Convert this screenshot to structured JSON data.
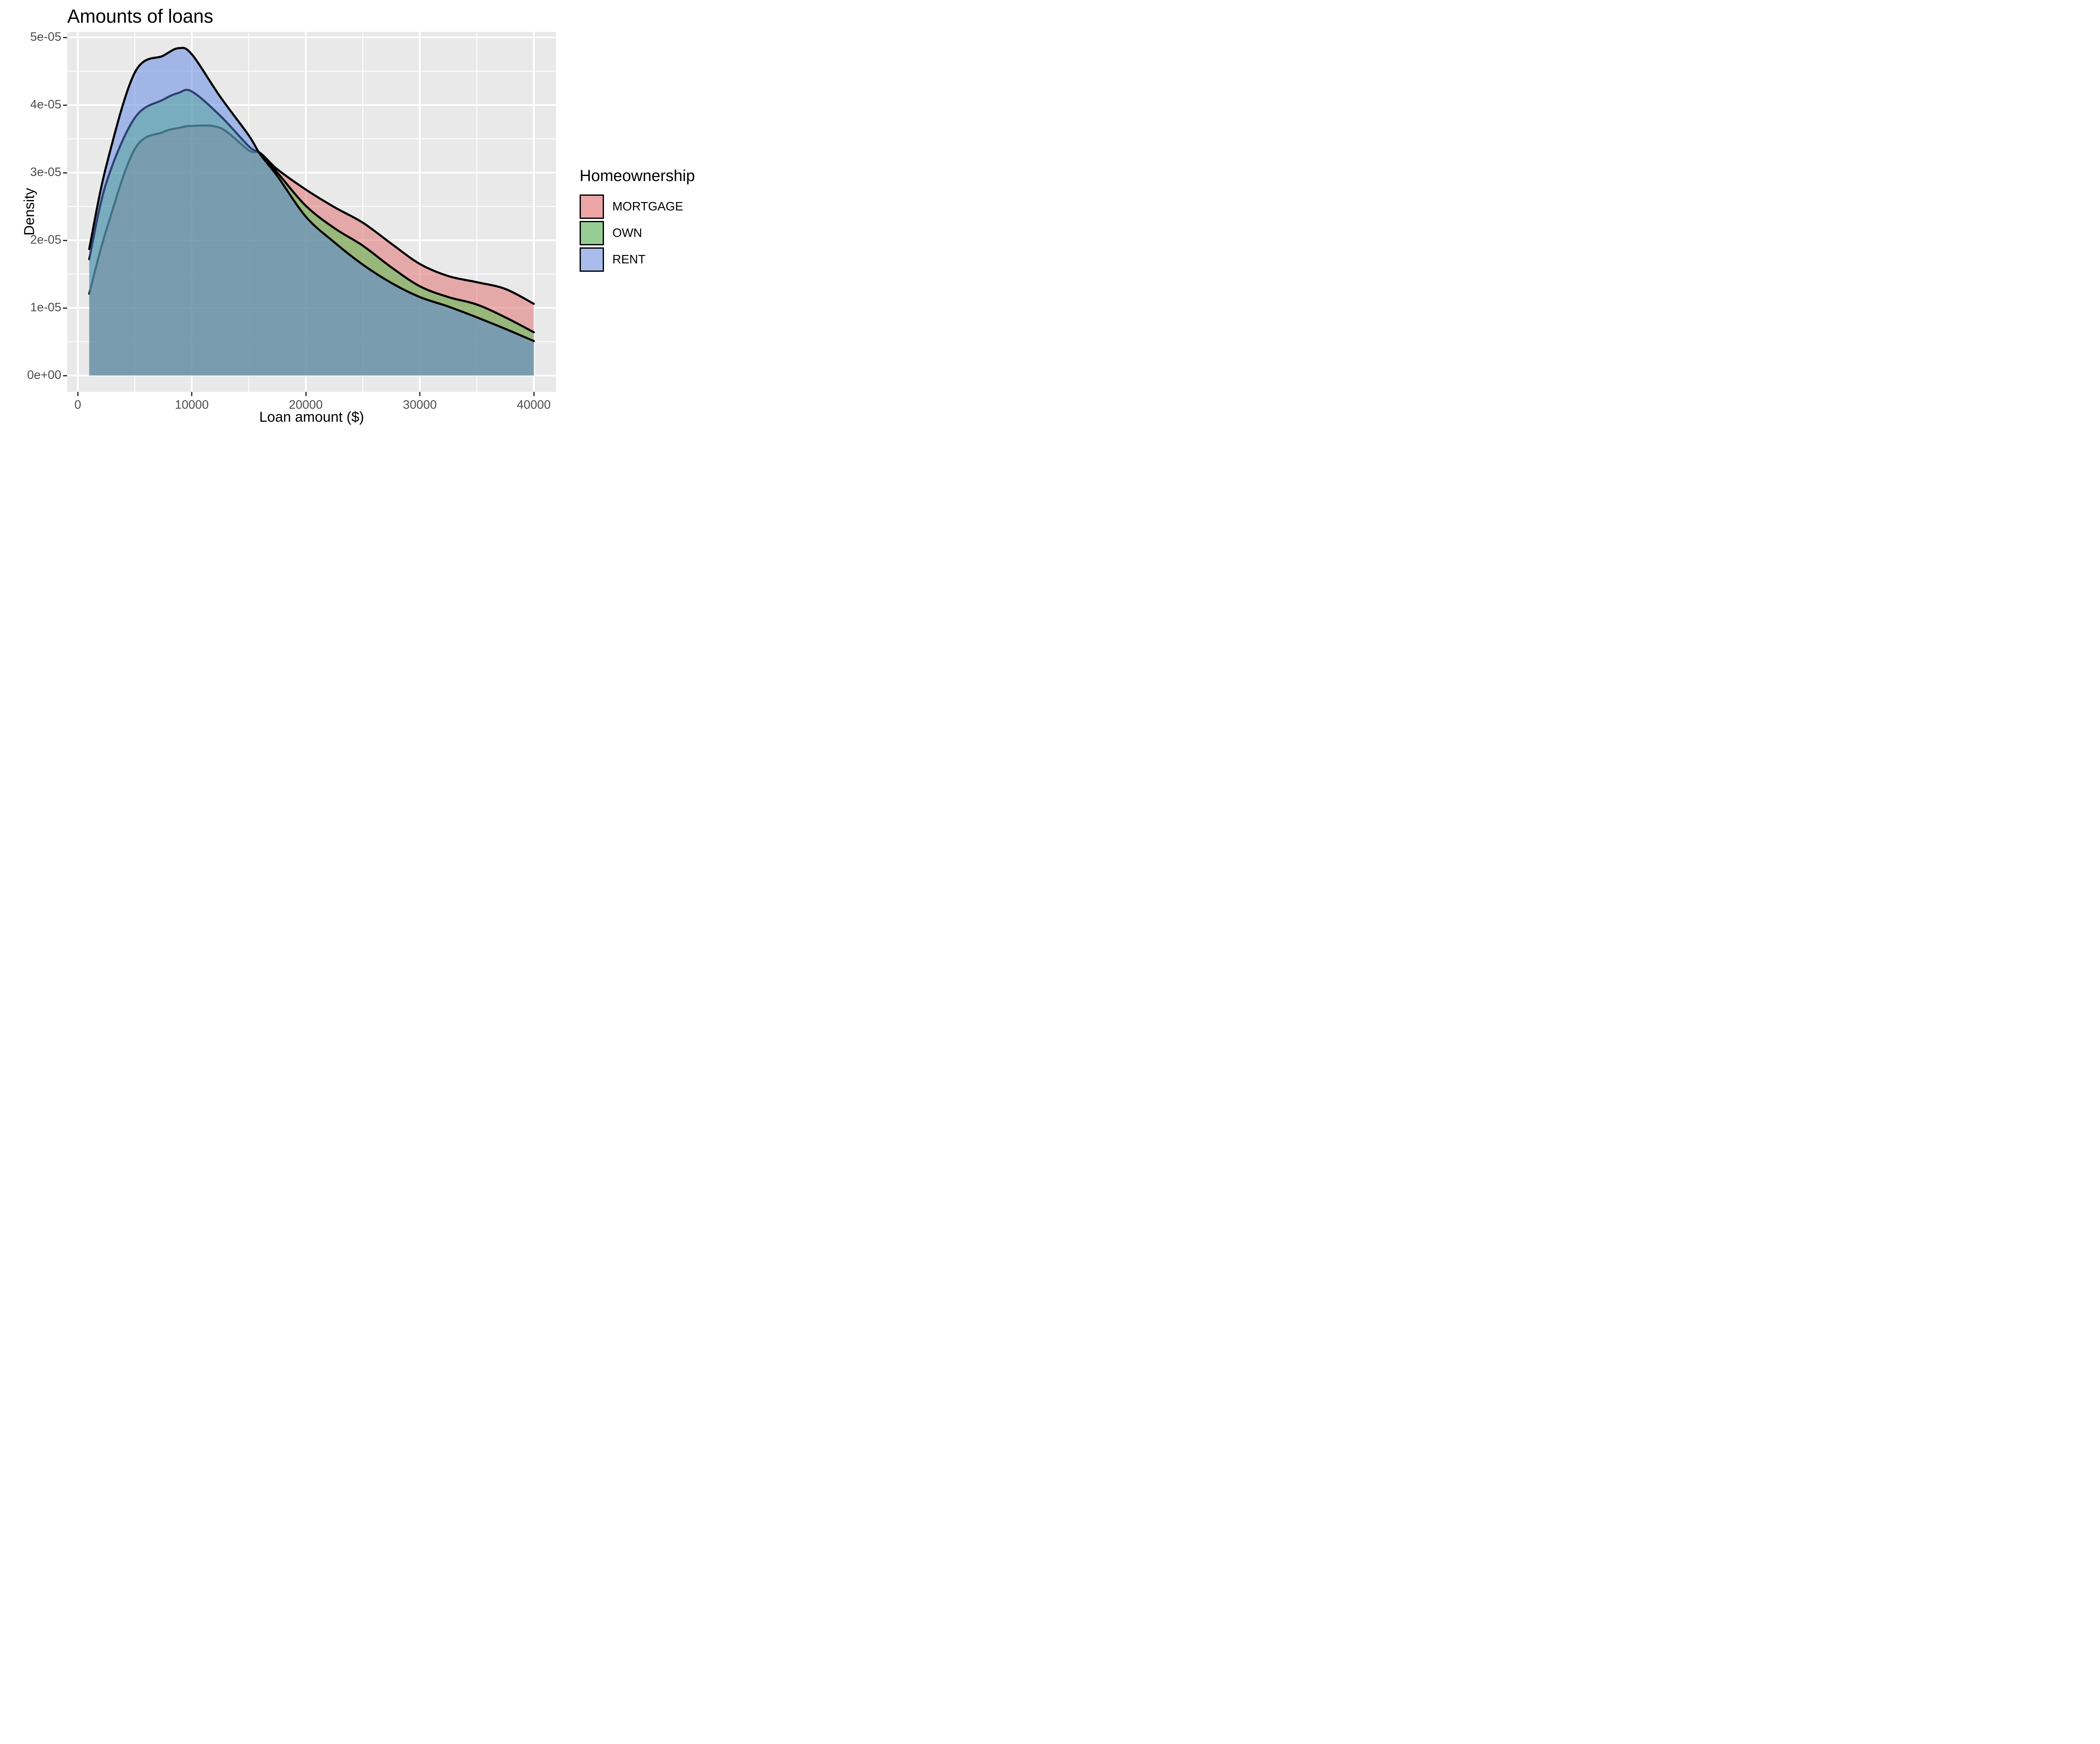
{
  "title": "Amounts of loans",
  "axes": {
    "x": {
      "label": "Loan amount ($)",
      "tick_labels": [
        "0",
        "10000",
        "20000",
        "30000",
        "40000"
      ],
      "tick_values": [
        0,
        10000,
        20000,
        30000,
        40000
      ],
      "minor_tick_values": [
        5000,
        15000,
        25000,
        35000
      ]
    },
    "y": {
      "label": "Density",
      "tick_labels": [
        "0e+00",
        "1e-05",
        "2e-05",
        "3e-05",
        "4e-05",
        "5e-05"
      ],
      "tick_values": [
        0,
        1e-05,
        2e-05,
        3e-05,
        4e-05,
        5e-05
      ],
      "minor_tick_values": [
        5e-06,
        1.5e-05,
        2.5e-05,
        3.5e-05,
        4.5e-05
      ]
    }
  },
  "legend": {
    "title": "Homeownership",
    "items": [
      {
        "label": "MORTGAGE",
        "swatch": "#EDA6A6"
      },
      {
        "label": "OWN",
        "swatch": "#97CD94"
      },
      {
        "label": "RENT",
        "swatch": "#A9BCEC"
      }
    ]
  },
  "colors": {
    "panel_background": "#E9E9E9",
    "gridline": "#FFFFFF",
    "curve_outline": "#000000",
    "tick_text": "#4D4D4D",
    "mortgage_fill_base": "rgba(226,104,104,0.5)",
    "own_fill_base": "rgba(75,197,75,0.5)",
    "rent_fill_base": "rgba(90,130,227,0.5)"
  },
  "chart_data": {
    "type": "area",
    "title": "Amounts of loans",
    "xlabel": "Loan amount ($)",
    "ylabel": "Density",
    "legend_position": "right",
    "grid": true,
    "xlim": [
      0,
      40000
    ],
    "ylim": [
      0,
      5e-05
    ],
    "x": [
      1000,
      2500,
      5000,
      7500,
      8850,
      10000,
      12500,
      15000,
      16000,
      17500,
      20000,
      22500,
      25000,
      27500,
      30000,
      32500,
      35000,
      37500,
      40000
    ],
    "series": [
      {
        "name": "MORTGAGE",
        "values": [
          1.21e-05,
          2.15e-05,
          3.35e-05,
          3.6e-05,
          3.66e-05,
          3.69e-05,
          3.66e-05,
          3.33e-05,
          3.29e-05,
          3.05e-05,
          2.75e-05,
          2.49e-05,
          2.26e-05,
          1.95e-05,
          1.65e-05,
          1.47e-05,
          1.38e-05,
          1.28e-05,
          1.06e-05
        ]
      },
      {
        "name": "OWN",
        "values": [
          1.72e-05,
          2.85e-05,
          3.81e-05,
          4.08e-05,
          4.18e-05,
          4.2e-05,
          3.84e-05,
          3.39e-05,
          3.28e-05,
          3e-05,
          2.51e-05,
          2.18e-05,
          1.92e-05,
          1.6e-05,
          1.32e-05,
          1.16e-05,
          1.05e-05,
          8.6e-06,
          6.4e-06
        ]
      },
      {
        "name": "RENT",
        "values": [
          1.87e-05,
          3.1e-05,
          4.48e-05,
          4.73e-05,
          4.84e-05,
          4.75e-05,
          4.12e-05,
          3.55e-05,
          3.27e-05,
          2.95e-05,
          2.35e-05,
          1.97e-05,
          1.64e-05,
          1.37e-05,
          1.16e-05,
          1.02e-05,
          8.6e-06,
          6.9e-06,
          5.1e-06
        ]
      }
    ]
  }
}
